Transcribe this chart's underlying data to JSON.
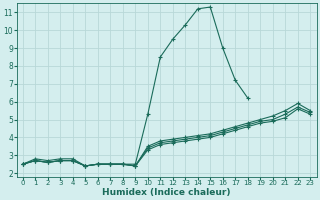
{
  "xlabel": "Humidex (Indice chaleur)",
  "bg_color": "#d4eeee",
  "grid_color": "#b8d8d8",
  "line_color": "#1a6b5a",
  "xlim": [
    -0.5,
    23.5
  ],
  "ylim": [
    1.8,
    11.5
  ],
  "xticks": [
    0,
    1,
    2,
    3,
    4,
    5,
    6,
    7,
    8,
    9,
    10,
    11,
    12,
    13,
    14,
    15,
    16,
    17,
    18,
    19,
    20,
    21,
    22,
    23
  ],
  "yticks": [
    2,
    3,
    4,
    5,
    6,
    7,
    8,
    9,
    10,
    11
  ],
  "series": [
    [
      2.5,
      2.8,
      2.7,
      2.8,
      2.8,
      2.4,
      2.5,
      2.5,
      2.5,
      2.5,
      5.3,
      8.5,
      9.5,
      10.3,
      11.2,
      11.3,
      9.0,
      7.2,
      6.2,
      null,
      null,
      null,
      null,
      null
    ],
    [
      2.5,
      2.7,
      2.6,
      2.7,
      2.7,
      2.4,
      2.5,
      2.5,
      2.5,
      2.4,
      3.5,
      3.8,
      3.9,
      4.0,
      4.1,
      4.2,
      4.4,
      4.6,
      4.8,
      5.0,
      5.2,
      5.5,
      5.9,
      5.5
    ],
    [
      2.5,
      2.7,
      2.6,
      2.7,
      2.7,
      2.4,
      2.5,
      2.5,
      2.5,
      2.4,
      3.4,
      3.7,
      3.8,
      3.9,
      4.0,
      4.1,
      4.3,
      4.5,
      4.7,
      4.9,
      5.0,
      5.3,
      5.7,
      5.4
    ],
    [
      2.5,
      2.7,
      2.6,
      2.7,
      2.7,
      2.4,
      2.5,
      2.5,
      2.5,
      2.4,
      3.3,
      3.6,
      3.7,
      3.8,
      3.9,
      4.0,
      4.2,
      4.4,
      4.6,
      4.8,
      4.9,
      5.1,
      5.6,
      5.3
    ]
  ],
  "xlabel_fontsize": 6.5,
  "tick_fontsize": 5.0
}
